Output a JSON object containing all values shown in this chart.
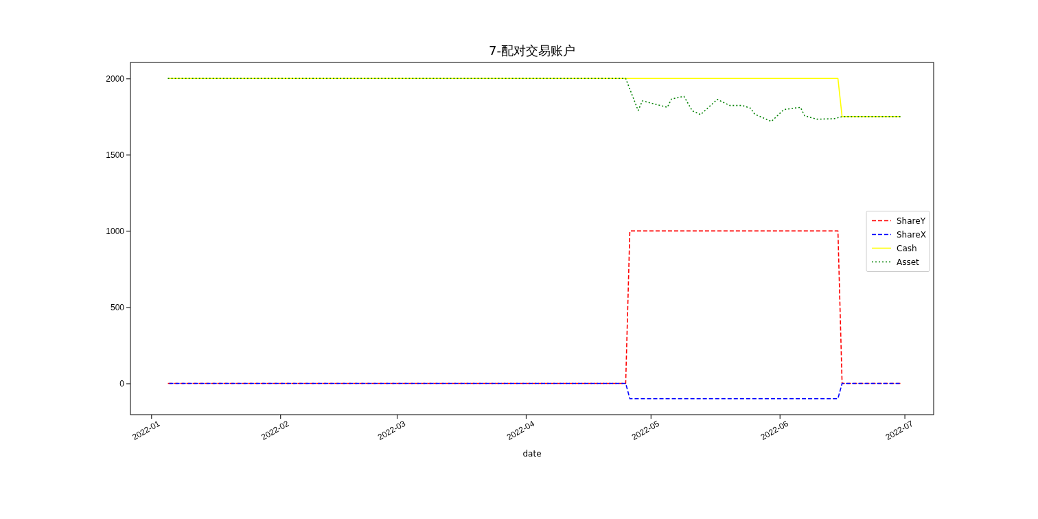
{
  "chart_data": {
    "type": "line",
    "title": "7-配对交易账户",
    "xlabel": "date",
    "xlim": [
      "2021-12-27",
      "2022-07-08"
    ],
    "ylim": [
      -205,
      2105
    ],
    "xticks": [
      {
        "value": "2022-01-01",
        "label": "2022-01"
      },
      {
        "value": "2022-02-01",
        "label": "2022-02"
      },
      {
        "value": "2022-03-01",
        "label": "2022-03"
      },
      {
        "value": "2022-04-01",
        "label": "2022-04"
      },
      {
        "value": "2022-05-01",
        "label": "2022-05"
      },
      {
        "value": "2022-06-01",
        "label": "2022-06"
      },
      {
        "value": "2022-07-01",
        "label": "2022-07"
      }
    ],
    "yticks": [
      0,
      500,
      1000,
      1500,
      2000
    ],
    "grid": false,
    "legend": "right",
    "series": [
      {
        "name": "ShareY",
        "color": "#ff0000",
        "line_style": "dashed",
        "x": [
          "2022-01-05",
          "2022-04-25",
          "2022-04-26",
          "2022-06-15",
          "2022-06-16",
          "2022-06-30"
        ],
        "values": [
          0,
          0,
          1000,
          1000,
          0,
          0
        ]
      },
      {
        "name": "ShareX",
        "color": "#0000ff",
        "line_style": "dashed",
        "x": [
          "2022-01-05",
          "2022-04-25",
          "2022-04-26",
          "2022-06-15",
          "2022-06-16",
          "2022-06-30"
        ],
        "values": [
          0,
          0,
          -100,
          -100,
          0,
          0
        ]
      },
      {
        "name": "Cash",
        "color": "#ffff00",
        "line_style": "solid",
        "x": [
          "2022-01-05",
          "2022-04-25",
          "2022-06-15",
          "2022-06-16",
          "2022-06-30"
        ],
        "values": [
          2000,
          2000,
          2000,
          1750,
          1750
        ]
      },
      {
        "name": "Asset",
        "color": "#008000",
        "line_style": "dotted",
        "x": [
          "2022-01-05",
          "2022-04-25",
          "2022-04-28",
          "2022-04-29",
          "2022-05-05",
          "2022-05-06",
          "2022-05-09",
          "2022-05-11",
          "2022-05-13",
          "2022-05-17",
          "2022-05-20",
          "2022-05-23",
          "2022-05-25",
          "2022-05-26",
          "2022-05-30",
          "2022-06-02",
          "2022-06-06",
          "2022-06-07",
          "2022-06-10",
          "2022-06-14",
          "2022-06-16",
          "2022-06-30"
        ],
        "values": [
          2000,
          2000,
          1790,
          1853,
          1811,
          1865,
          1883,
          1788,
          1763,
          1863,
          1823,
          1823,
          1805,
          1766,
          1718,
          1796,
          1811,
          1755,
          1733,
          1736,
          1750,
          1750
        ]
      }
    ]
  }
}
